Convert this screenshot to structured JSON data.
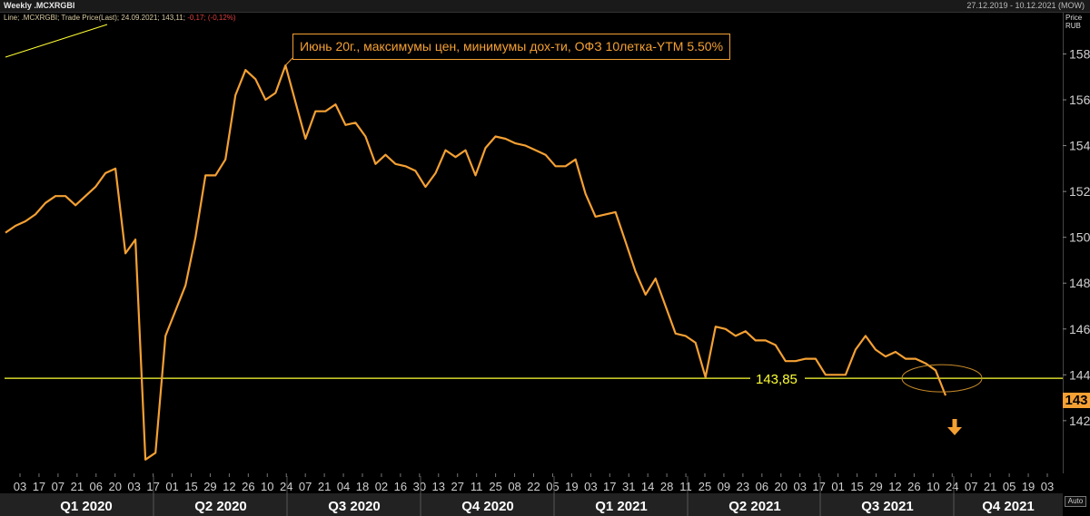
{
  "window": {
    "title": "Weekly .MCXRGBI",
    "date_range": "27.12.2019 - 10.12.2021 (MOW)"
  },
  "legend": {
    "prefix": "Line; .MCXRGBI; Trade Price(Last); 24.09.2021; 143,11;",
    "change": "-0,17; (-0,12%)"
  },
  "axis_header": {
    "line1": "Price",
    "line2": "RUB"
  },
  "auto_button": "Auto",
  "annotation_text": "Июнь 20г., максимумы цен, минимумы дох-ти, ОФЗ 10летка-YTM 5.50%",
  "support_label": "143,85",
  "last_value_badge": "143",
  "colors": {
    "series": "#f4a033",
    "support": "#ffff33",
    "ellipse": "#c98a2a",
    "arrow": "#f4a033"
  },
  "chart_data": {
    "type": "line",
    "ylim": [
      139.7,
      159.8
    ],
    "y_ticks": [
      "158",
      "156",
      "154",
      "152",
      "150",
      "148",
      "146",
      "144",
      "142"
    ],
    "x_tick_labels": [
      "03",
      "17",
      "07",
      "21",
      "06",
      "20",
      "03",
      "17",
      "01",
      "15",
      "29",
      "12",
      "26",
      "10",
      "24",
      "07",
      "21",
      "04",
      "18",
      "02",
      "16",
      "30",
      "13",
      "27",
      "11",
      "25",
      "08",
      "22",
      "05",
      "19",
      "03",
      "17",
      "31",
      "14",
      "28",
      "11",
      "25",
      "09",
      "23",
      "06",
      "20",
      "03",
      "17",
      "01",
      "15",
      "29",
      "12",
      "26",
      "10",
      "24",
      "07",
      "21",
      "05",
      "19",
      "03"
    ],
    "quarters": [
      "Q1 2020",
      "Q2 2020",
      "Q3 2020",
      "Q4 2020",
      "Q1 2021",
      "Q2 2021",
      "Q3 2021",
      "Q4 2021"
    ],
    "support_level": 143.85,
    "last_value": 143.11,
    "series": [
      {
        "values": [
          150.2,
          150.5,
          150.7,
          151.0,
          151.5,
          151.8,
          151.8,
          151.4,
          151.8,
          152.2,
          152.8,
          153.0,
          149.3,
          149.9,
          140.3,
          140.6,
          145.7,
          146.8,
          147.9,
          150.0,
          152.7,
          152.7,
          153.4,
          156.2,
          157.3,
          156.9,
          156.0,
          156.3,
          157.5,
          155.9,
          154.3,
          155.5,
          155.5,
          155.8,
          154.9,
          155.0,
          154.4,
          153.2,
          153.6,
          153.2,
          153.1,
          152.9,
          152.2,
          152.8,
          153.8,
          153.5,
          153.8,
          152.7,
          153.9,
          154.4,
          154.3,
          154.1,
          154.0,
          153.8,
          153.6,
          153.1,
          153.1,
          153.4,
          151.9,
          150.9,
          151.0,
          151.1,
          149.8,
          148.5,
          147.5,
          148.2,
          147.0,
          145.8,
          145.7,
          145.4,
          143.9,
          146.1,
          146.0,
          145.7,
          145.9,
          145.5,
          145.5,
          145.3,
          144.6,
          144.6,
          144.7,
          144.7,
          144.0,
          144.0,
          144.0,
          145.1,
          145.7,
          145.1,
          144.8,
          145.0,
          144.7,
          144.7,
          144.5,
          144.2,
          143.1
        ]
      }
    ]
  }
}
